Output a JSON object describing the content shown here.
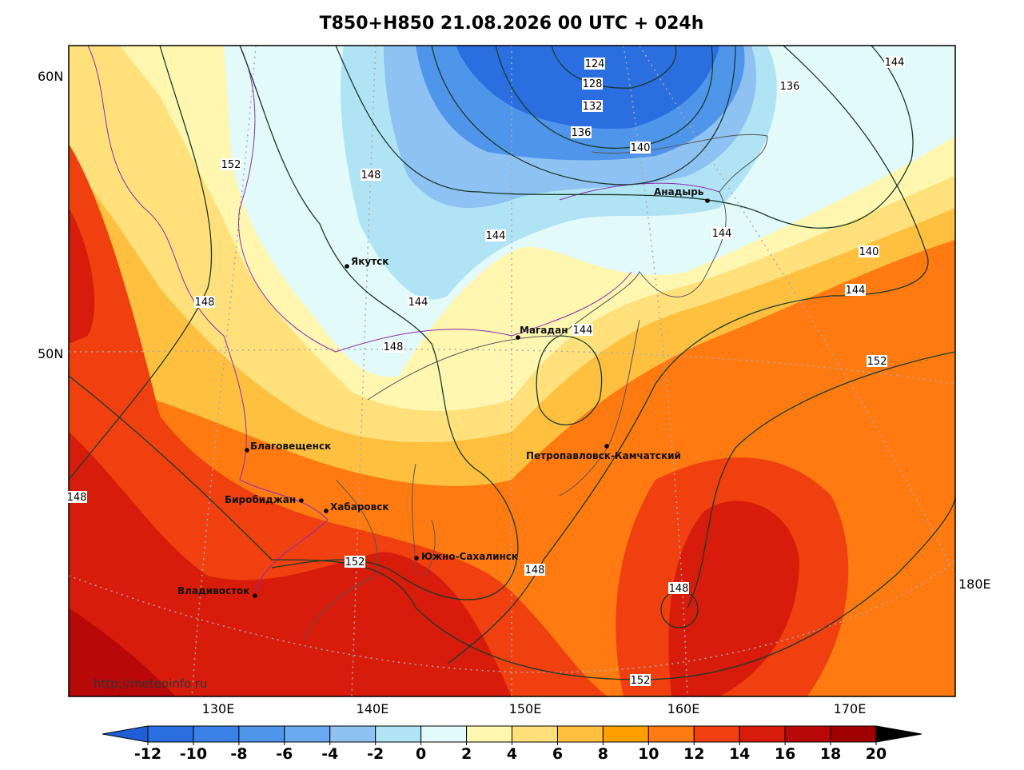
{
  "title": "T850+H850 21.08.2026 00 UTC + 024h",
  "lat_labels": [
    "60N",
    "50N"
  ],
  "lon_labels": [
    "130E",
    "140E",
    "150E",
    "160E",
    "170E",
    "180E"
  ],
  "cities": [
    "Анадырь",
    "Якутск",
    "Магадан",
    "Благовещенск",
    "Петропавловск-Камчатский",
    "Биробиджан",
    "Хабаровск",
    "Южно-Сахалинск",
    "Владивосток"
  ],
  "contour_labels": [
    124,
    128,
    132,
    136,
    140,
    136,
    144,
    148,
    152,
    144,
    144,
    140,
    144,
    148,
    144,
    148,
    144,
    152,
    148,
    152,
    148,
    148,
    152
  ],
  "credit": "http://meteoinfo.ru",
  "colorbar": {
    "ticks": [
      -12,
      -10,
      -8,
      -6,
      -4,
      -2,
      0,
      2,
      4,
      6,
      8,
      10,
      12,
      14,
      16,
      18,
      20
    ],
    "colors": [
      "#1f5fd6",
      "#2a6ee0",
      "#3b82e8",
      "#4f95ea",
      "#6aaaf0",
      "#8ec2f2",
      "#b0e4f4",
      "#e2fafa",
      "#fff6b0",
      "#ffe07a",
      "#ffc040",
      "#ffa000",
      "#ff7a10",
      "#f04010",
      "#d81c0c",
      "#b80808",
      "#a00000"
    ]
  }
}
